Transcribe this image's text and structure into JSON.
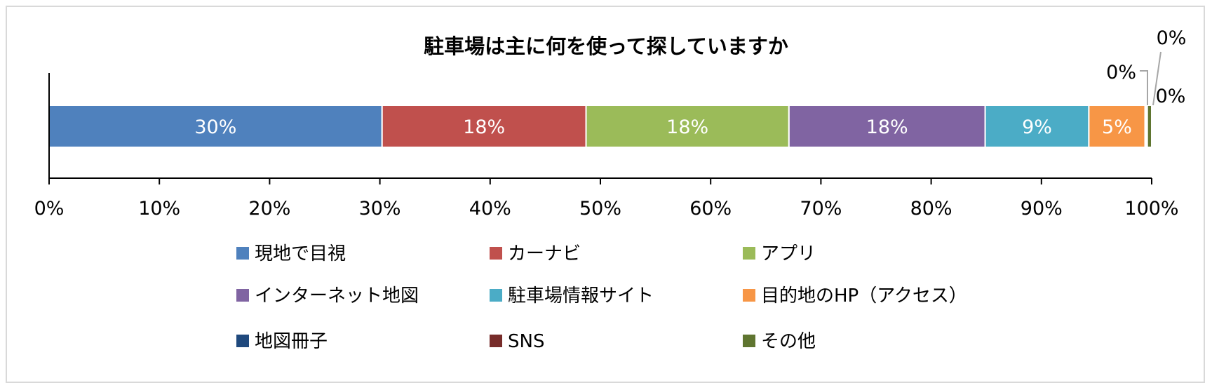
{
  "chart_data": {
    "type": "bar",
    "orientation": "horizontal",
    "stacked": true,
    "title": "駐車場は主に何を使って探していますか",
    "xlim": [
      0,
      100
    ],
    "x_ticks": [
      "0%",
      "10%",
      "20%",
      "30%",
      "40%",
      "50%",
      "60%",
      "70%",
      "80%",
      "90%",
      "100%"
    ],
    "x_tick_values": [
      0,
      10,
      20,
      30,
      40,
      50,
      60,
      70,
      80,
      90,
      100
    ],
    "grid": false,
    "legend_position": "bottom",
    "series": [
      {
        "name": "現地で目視",
        "value": 30.2,
        "label": "30%",
        "color": "#4f81bd"
      },
      {
        "name": "カーナビ",
        "value": 18.5,
        "label": "18%",
        "color": "#c0504d"
      },
      {
        "name": "アプリ",
        "value": 18.4,
        "label": "18%",
        "color": "#9bbb59"
      },
      {
        "name": "インターネット地図",
        "value": 17.8,
        "label": "18%",
        "color": "#8064a2"
      },
      {
        "name": "駐車場情報サイト",
        "value": 9.4,
        "label": "9%",
        "color": "#4bacc6"
      },
      {
        "name": "目的地のHP（アクセス）",
        "value": 5.1,
        "label": "5%",
        "color": "#f79646"
      },
      {
        "name": "地図冊子",
        "value": 0.1,
        "label": "0%",
        "color": "#1f497d"
      },
      {
        "name": "SNS",
        "value": 0.1,
        "label": "0%",
        "color": "#772c2a"
      },
      {
        "name": "その他",
        "value": 0.4,
        "label": "0%",
        "color": "#5f7530"
      }
    ]
  }
}
